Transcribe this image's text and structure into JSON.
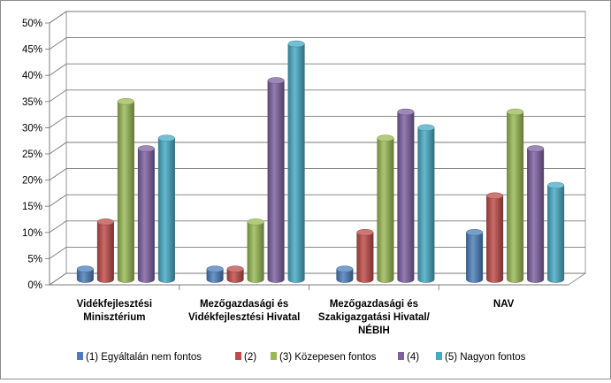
{
  "chart_data": {
    "type": "bar",
    "three_d": true,
    "categories": [
      [
        "Vidékfejlesztési",
        "Minisztérium"
      ],
      [
        "Mezőgazdasági  és",
        "Vidékfejlesztési Hivatal"
      ],
      [
        "Mezőgazdasági  és",
        "Szakigazgatási  Hivatal/",
        "NÉBIH"
      ],
      [
        "NAV"
      ]
    ],
    "series": [
      {
        "name": "(1) Egyáltalán  nem fontos",
        "color": "#4a7ebb",
        "values": [
          2,
          2,
          2,
          9
        ]
      },
      {
        "name": "(2)",
        "color": "#be4b48",
        "values": [
          11,
          2,
          9,
          16
        ]
      },
      {
        "name": "(3) Közepesen fontos",
        "color": "#98b954",
        "values": [
          34,
          11,
          27,
          32
        ]
      },
      {
        "name": "(4)",
        "color": "#7d60a0",
        "values": [
          25,
          38,
          32,
          25
        ]
      },
      {
        "name": "(5) Nagyon  fontos",
        "color": "#46aac5",
        "values": [
          27,
          45,
          29,
          18
        ]
      }
    ],
    "ylim": [
      0,
      50
    ],
    "yticks": [
      "0%",
      "5%",
      "10%",
      "15%",
      "20%",
      "25%",
      "30%",
      "35%",
      "40%",
      "45%",
      "50%"
    ],
    "grid": true,
    "legend_position": "bottom"
  }
}
